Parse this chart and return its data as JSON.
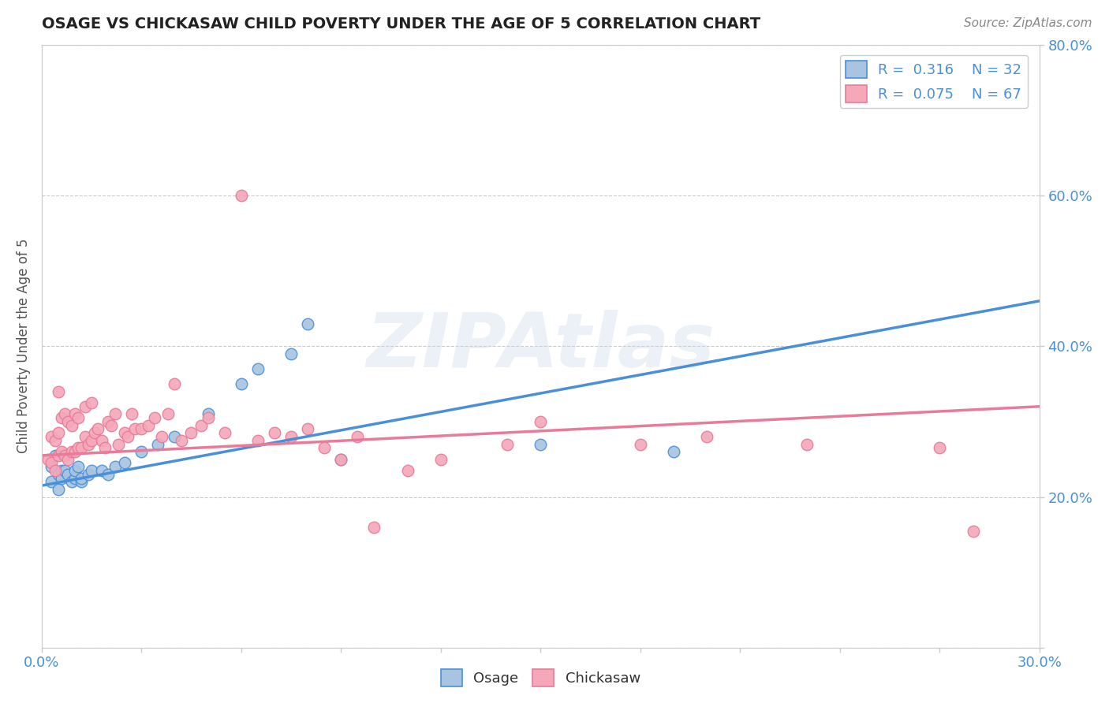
{
  "title": "OSAGE VS CHICKASAW CHILD POVERTY UNDER THE AGE OF 5 CORRELATION CHART",
  "source": "Source: ZipAtlas.com",
  "ylabel": "Child Poverty Under the Age of 5",
  "xlim": [
    0.0,
    0.3
  ],
  "ylim": [
    0.0,
    0.8
  ],
  "xticks": [
    0.0,
    0.03,
    0.06,
    0.09,
    0.12,
    0.15,
    0.18,
    0.21,
    0.24,
    0.27,
    0.3
  ],
  "xticklabels_show": [
    "0.0%",
    "30.0%"
  ],
  "yticks": [
    0.0,
    0.2,
    0.4,
    0.6,
    0.8
  ],
  "yticklabels": [
    "",
    "20.0%",
    "40.0%",
    "60.0%",
    "80.0%"
  ],
  "osage_color": "#a8c4e0",
  "chickasaw_color": "#f4a8b8",
  "osage_line_color": "#4a90d9",
  "chickasaw_line_color": "#e87a9a",
  "dashed_line_color": "#b0c4d8",
  "R_osage": 0.316,
  "N_osage": 32,
  "R_chickasaw": 0.075,
  "N_chickasaw": 67,
  "watermark": "ZIPAtlas",
  "legend_osage": "Osage",
  "legend_chickasaw": "Chickasaw",
  "osage_x": [
    0.003,
    0.003,
    0.004,
    0.005,
    0.005,
    0.006,
    0.006,
    0.007,
    0.008,
    0.009,
    0.01,
    0.01,
    0.011,
    0.012,
    0.012,
    0.014,
    0.015,
    0.018,
    0.02,
    0.022,
    0.025,
    0.03,
    0.035,
    0.04,
    0.05,
    0.06,
    0.065,
    0.075,
    0.08,
    0.09,
    0.15,
    0.19
  ],
  "osage_y": [
    0.22,
    0.24,
    0.255,
    0.21,
    0.23,
    0.235,
    0.225,
    0.235,
    0.23,
    0.22,
    0.225,
    0.235,
    0.24,
    0.22,
    0.225,
    0.23,
    0.235,
    0.235,
    0.23,
    0.24,
    0.245,
    0.26,
    0.27,
    0.28,
    0.31,
    0.35,
    0.37,
    0.39,
    0.43,
    0.25,
    0.27,
    0.26
  ],
  "chickasaw_x": [
    0.002,
    0.003,
    0.003,
    0.004,
    0.004,
    0.005,
    0.005,
    0.005,
    0.006,
    0.006,
    0.007,
    0.007,
    0.008,
    0.008,
    0.009,
    0.009,
    0.01,
    0.01,
    0.011,
    0.011,
    0.012,
    0.013,
    0.013,
    0.014,
    0.015,
    0.015,
    0.016,
    0.017,
    0.018,
    0.019,
    0.02,
    0.021,
    0.022,
    0.023,
    0.025,
    0.026,
    0.027,
    0.028,
    0.03,
    0.032,
    0.034,
    0.036,
    0.038,
    0.04,
    0.042,
    0.045,
    0.048,
    0.05,
    0.055,
    0.06,
    0.065,
    0.07,
    0.075,
    0.08,
    0.085,
    0.09,
    0.095,
    0.1,
    0.11,
    0.12,
    0.14,
    0.15,
    0.18,
    0.2,
    0.23,
    0.27,
    0.28
  ],
  "chickasaw_y": [
    0.25,
    0.245,
    0.28,
    0.235,
    0.275,
    0.255,
    0.285,
    0.34,
    0.26,
    0.305,
    0.255,
    0.31,
    0.25,
    0.3,
    0.26,
    0.295,
    0.26,
    0.31,
    0.265,
    0.305,
    0.265,
    0.28,
    0.32,
    0.27,
    0.275,
    0.325,
    0.285,
    0.29,
    0.275,
    0.265,
    0.3,
    0.295,
    0.31,
    0.27,
    0.285,
    0.28,
    0.31,
    0.29,
    0.29,
    0.295,
    0.305,
    0.28,
    0.31,
    0.35,
    0.275,
    0.285,
    0.295,
    0.305,
    0.285,
    0.6,
    0.275,
    0.285,
    0.28,
    0.29,
    0.265,
    0.25,
    0.28,
    0.16,
    0.235,
    0.25,
    0.27,
    0.3,
    0.27,
    0.28,
    0.27,
    0.265,
    0.155
  ]
}
